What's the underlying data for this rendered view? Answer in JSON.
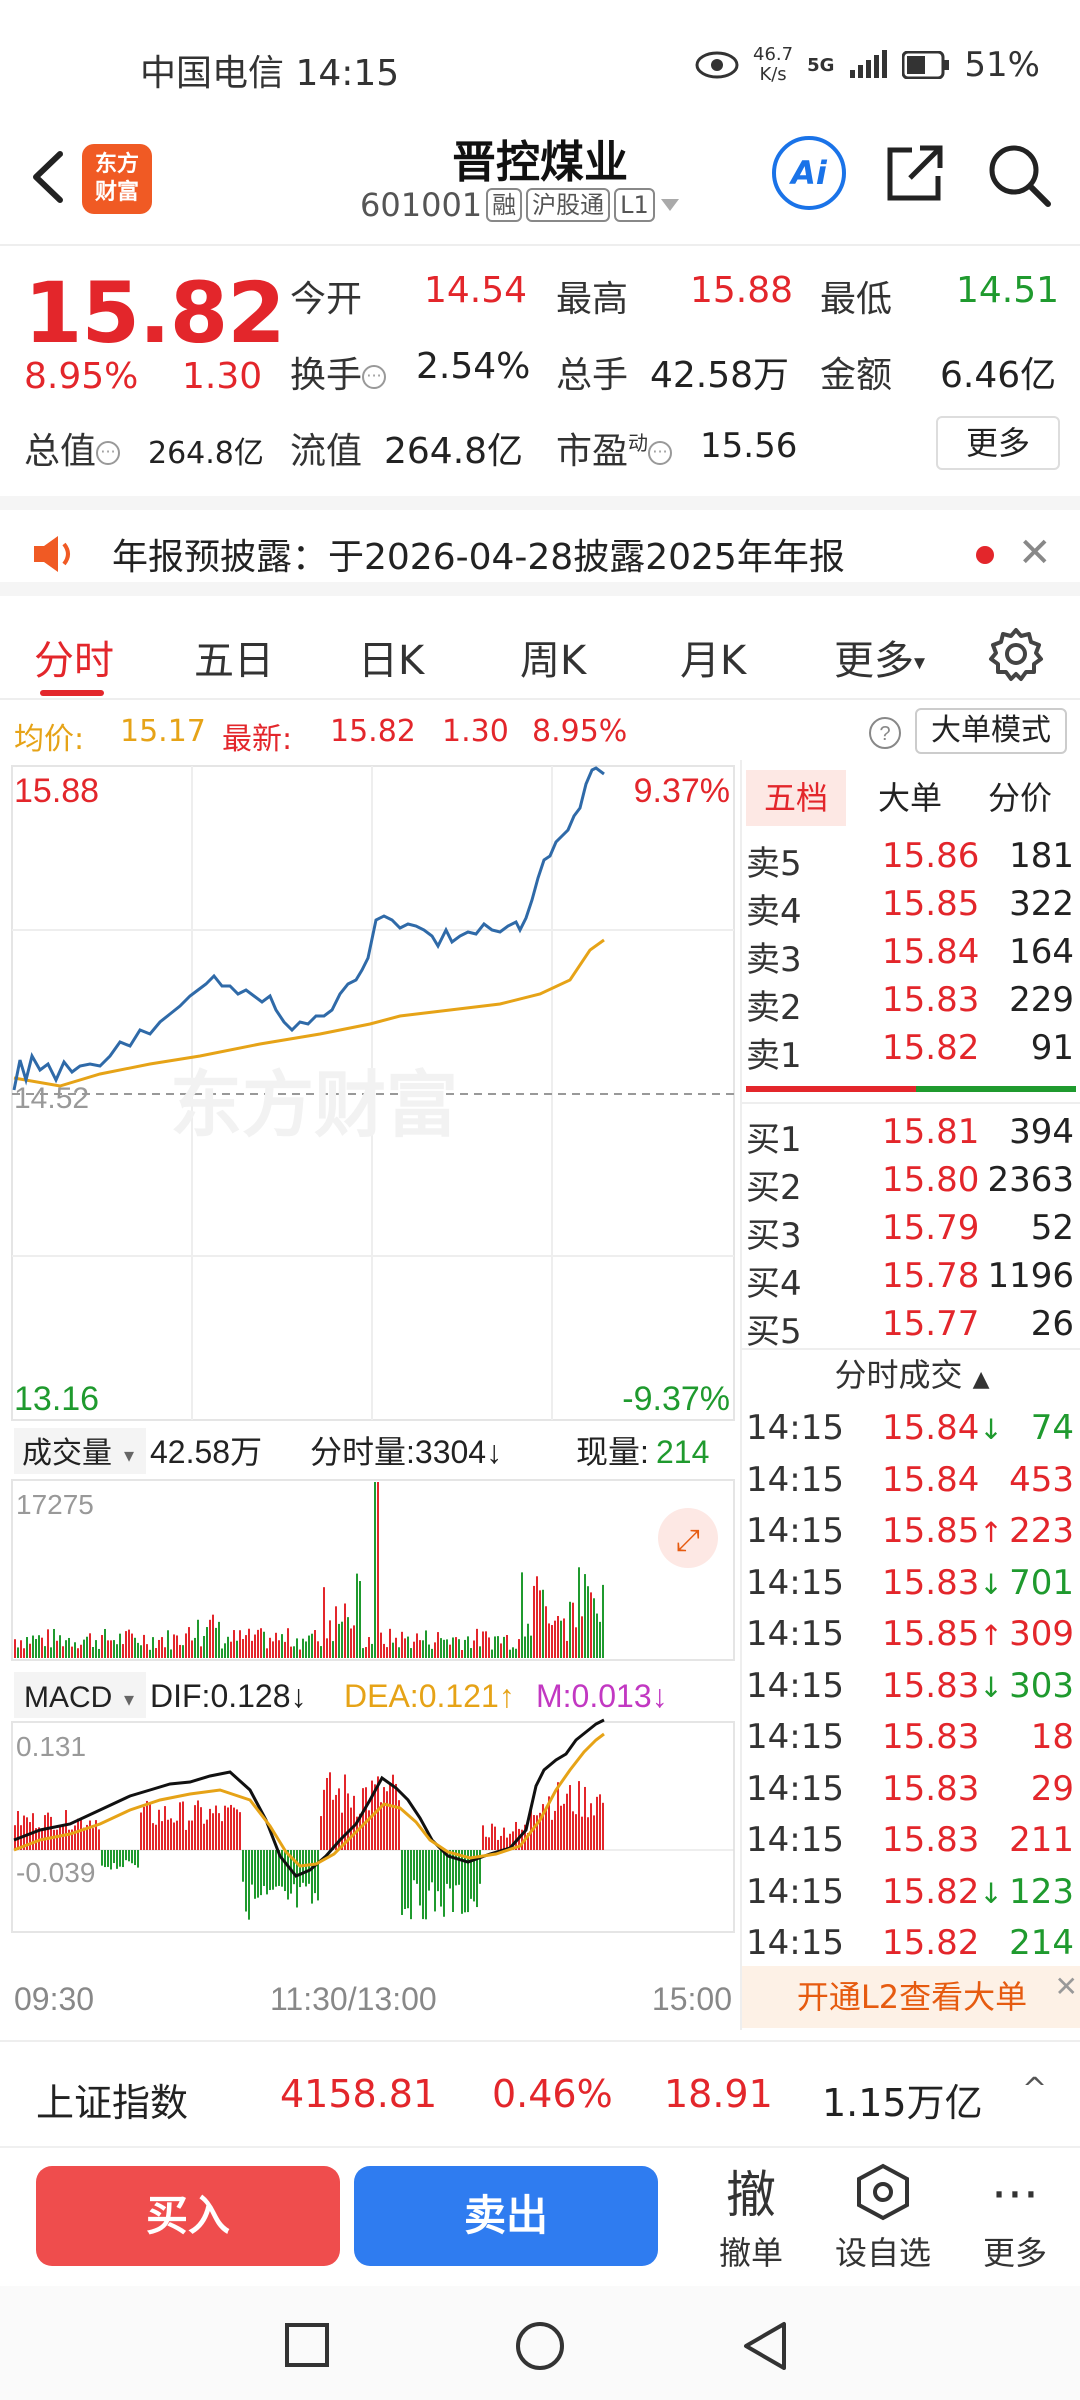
{
  "status_bar": {
    "carrier_time": "中国电信 14:15",
    "net_speed_top": "46.7",
    "net_speed_unit": "K/s",
    "network": "5G",
    "battery": "51%"
  },
  "header": {
    "logo_text_1": "东方",
    "logo_text_2": "财富",
    "stock_name": "晋控煤业",
    "stock_code": "601001",
    "tags": [
      "融",
      "沪股通",
      "L1"
    ],
    "ai_label": "Ai"
  },
  "quote": {
    "price": "15.82",
    "change_pct": "8.95%",
    "change_abs": "1.30",
    "open_label": "今开",
    "open": "14.54",
    "high_label": "最高",
    "high": "15.88",
    "low_label": "最低",
    "low": "14.51",
    "turnover_label": "换手",
    "turnover": "2.54%",
    "volume_label": "总手",
    "volume": "42.58万",
    "amount_label": "金额",
    "amount": "6.46亿",
    "mktcap_label": "总值",
    "mktcap": "264.8亿",
    "float_label": "流值",
    "float": "264.8亿",
    "pe_label": "市盈",
    "pe_sup": "动",
    "pe": "15.56",
    "more": "更多"
  },
  "notice": {
    "text": "年报预披露：于2026-04-28披露2025年年报"
  },
  "tabs": [
    "分时",
    "五日",
    "日K",
    "周K",
    "月K",
    "更多",
    ""
  ],
  "avg_row": {
    "avg_label": "均价:",
    "avg": "15.17",
    "latest_label": "最新:",
    "latest": "15.82",
    "chg": "1.30",
    "pct": "8.95%",
    "bigorder_btn": "大单模式"
  },
  "chart": {
    "top_price": "15.88",
    "top_pct": "9.37%",
    "mid_price": "14.52",
    "bottom_price": "13.16",
    "bottom_pct": "-9.37%",
    "watermark": "东方财富",
    "vol_label": "成交量",
    "vol_total": "42.58万",
    "vol_tick": "分时量:3304↓",
    "vol_now_label": "现量:",
    "vol_now": "214",
    "vol_max": "17275",
    "macd_label": "MACD",
    "dif": "DIF:0.128↓",
    "dea": "DEA:0.121↑",
    "m": "M:0.013↓",
    "macd_top": "0.131",
    "macd_bottom": "-0.039",
    "time_start": "09:30",
    "time_mid": "11:30/13:00",
    "time_end": "15:00"
  },
  "orderbook": {
    "tabs": [
      "五档",
      "大单",
      "分价"
    ],
    "asks": [
      {
        "label": "卖5",
        "price": "15.86",
        "vol": "181"
      },
      {
        "label": "卖4",
        "price": "15.85",
        "vol": "322"
      },
      {
        "label": "卖3",
        "price": "15.84",
        "vol": "164"
      },
      {
        "label": "卖2",
        "price": "15.83",
        "vol": "229"
      },
      {
        "label": "卖1",
        "price": "15.82",
        "vol": "91"
      }
    ],
    "bids": [
      {
        "label": "买1",
        "price": "15.81",
        "vol": "394"
      },
      {
        "label": "买2",
        "price": "15.80",
        "vol": "2363"
      },
      {
        "label": "买3",
        "price": "15.79",
        "vol": "52"
      },
      {
        "label": "买4",
        "price": "15.78",
        "vol": "1196"
      },
      {
        "label": "买5",
        "price": "15.77",
        "vol": "26"
      }
    ],
    "ticks_title": "分时成交",
    "ticks": [
      {
        "t": "14:15",
        "p": "15.84",
        "dir": "↓",
        "v": "74",
        "vc": "green"
      },
      {
        "t": "14:15",
        "p": "15.84",
        "dir": "",
        "v": "453",
        "vc": "red"
      },
      {
        "t": "14:15",
        "p": "15.85",
        "dir": "↑",
        "v": "223",
        "vc": "red"
      },
      {
        "t": "14:15",
        "p": "15.83",
        "dir": "↓",
        "v": "701",
        "vc": "green"
      },
      {
        "t": "14:15",
        "p": "15.85",
        "dir": "↑",
        "v": "309",
        "vc": "red"
      },
      {
        "t": "14:15",
        "p": "15.83",
        "dir": "↓",
        "v": "303",
        "vc": "green"
      },
      {
        "t": "14:15",
        "p": "15.83",
        "dir": "",
        "v": "18",
        "vc": "red"
      },
      {
        "t": "14:15",
        "p": "15.83",
        "dir": "",
        "v": "29",
        "vc": "red"
      },
      {
        "t": "14:15",
        "p": "15.83",
        "dir": "",
        "v": "211",
        "vc": "red"
      },
      {
        "t": "14:15",
        "p": "15.82",
        "dir": "↓",
        "v": "123",
        "vc": "green"
      },
      {
        "t": "14:15",
        "p": "15.82",
        "dir": "",
        "v": "214",
        "vc": "green"
      }
    ],
    "l2_banner": "开通L2查看大单"
  },
  "index_bar": {
    "name": "上证指数",
    "value": "4158.81",
    "pct": "0.46%",
    "chg": "18.91",
    "amount": "1.15万亿"
  },
  "action_bar": {
    "buy": "买入",
    "sell": "卖出",
    "cancel_icon_char": "撤",
    "cancel": "撤单",
    "watch": "设自选",
    "more": "更多"
  },
  "colors": {
    "up": "#e3262b",
    "down": "#1f9a2e",
    "price_line": "#2f6aa8",
    "avg_line": "#e6a317",
    "buy": "#ef4d4d",
    "sell": "#2f7cf0"
  },
  "icons": [
    "back-icon",
    "share-icon",
    "search-icon",
    "speaker-icon",
    "close-icon",
    "settings-icon",
    "help-icon",
    "expand-icon",
    "watchlist-icon",
    "more-dots-icon"
  ]
}
